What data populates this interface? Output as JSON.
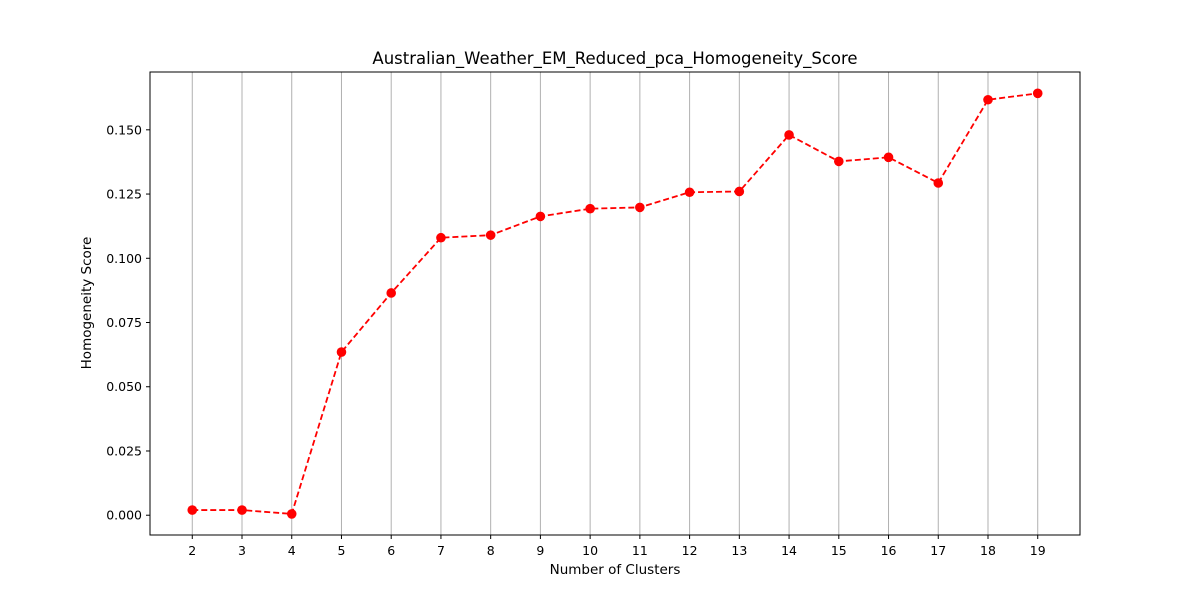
{
  "chart_data": {
    "type": "line",
    "title": "Australian_Weather_EM_Reduced_pca_Homogeneity_Score",
    "xlabel": "Number of Clusters",
    "ylabel": "Homogeneity Score",
    "x": [
      2,
      3,
      4,
      5,
      6,
      7,
      8,
      9,
      10,
      11,
      12,
      13,
      14,
      15,
      16,
      17,
      18,
      19
    ],
    "series": [
      {
        "values": [
          0.002,
          0.002,
          0.0005,
          0.0635,
          0.0865,
          0.108,
          0.109,
          0.1163,
          0.1193,
          0.1198,
          0.1257,
          0.126,
          0.148,
          0.1377,
          0.1393,
          0.1293,
          0.1617,
          0.1642
        ],
        "color": "#ff0000",
        "line_style": "dashed",
        "marker": "circle"
      }
    ],
    "x_ticks": [
      "2",
      "3",
      "4",
      "5",
      "6",
      "7",
      "8",
      "9",
      "10",
      "11",
      "12",
      "13",
      "14",
      "15",
      "16",
      "17",
      "18",
      "19"
    ],
    "y_ticks": [
      "0.000",
      "0.025",
      "0.050",
      "0.075",
      "0.100",
      "0.125",
      "0.150"
    ],
    "xlim": [
      1.15,
      19.85
    ],
    "ylim": [
      -0.0077,
      0.1725
    ],
    "grid": "vertical",
    "grid_color": "#b0b0b0",
    "legend": "none"
  }
}
